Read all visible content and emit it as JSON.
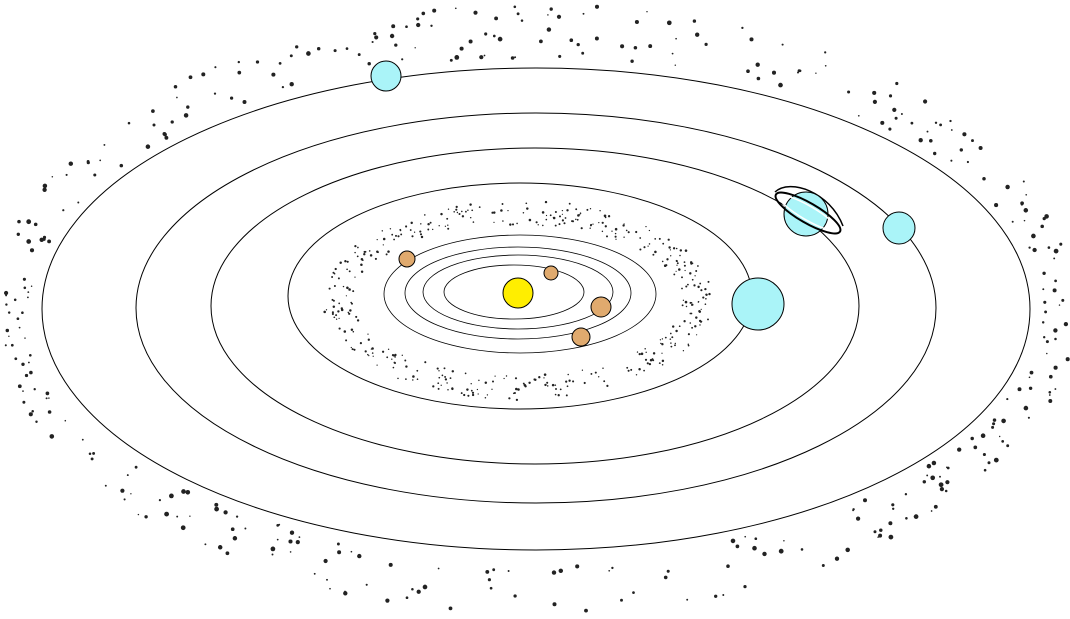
{
  "diagram": {
    "description_visible_text": "",
    "colors": {
      "background": "#ffffff",
      "orbit_stroke": "#000000",
      "sun": "#ffee00",
      "rocky_planet": "#e0aa6e",
      "gas_planet": "#aaf4f8",
      "debris": "#222222"
    },
    "bodies": [
      {
        "kind": "sun",
        "name": "sun"
      },
      {
        "kind": "rocky",
        "name": "planet-1"
      },
      {
        "kind": "rocky",
        "name": "planet-2"
      },
      {
        "kind": "rocky",
        "name": "planet-3"
      },
      {
        "kind": "rocky",
        "name": "planet-4"
      },
      {
        "kind": "gas",
        "name": "planet-5"
      },
      {
        "kind": "ringed-gas",
        "name": "planet-6"
      },
      {
        "kind": "gas",
        "name": "planet-7"
      },
      {
        "kind": "gas",
        "name": "planet-8"
      }
    ],
    "belts": [
      "asteroid-belt",
      "outer-debris-belt"
    ]
  }
}
